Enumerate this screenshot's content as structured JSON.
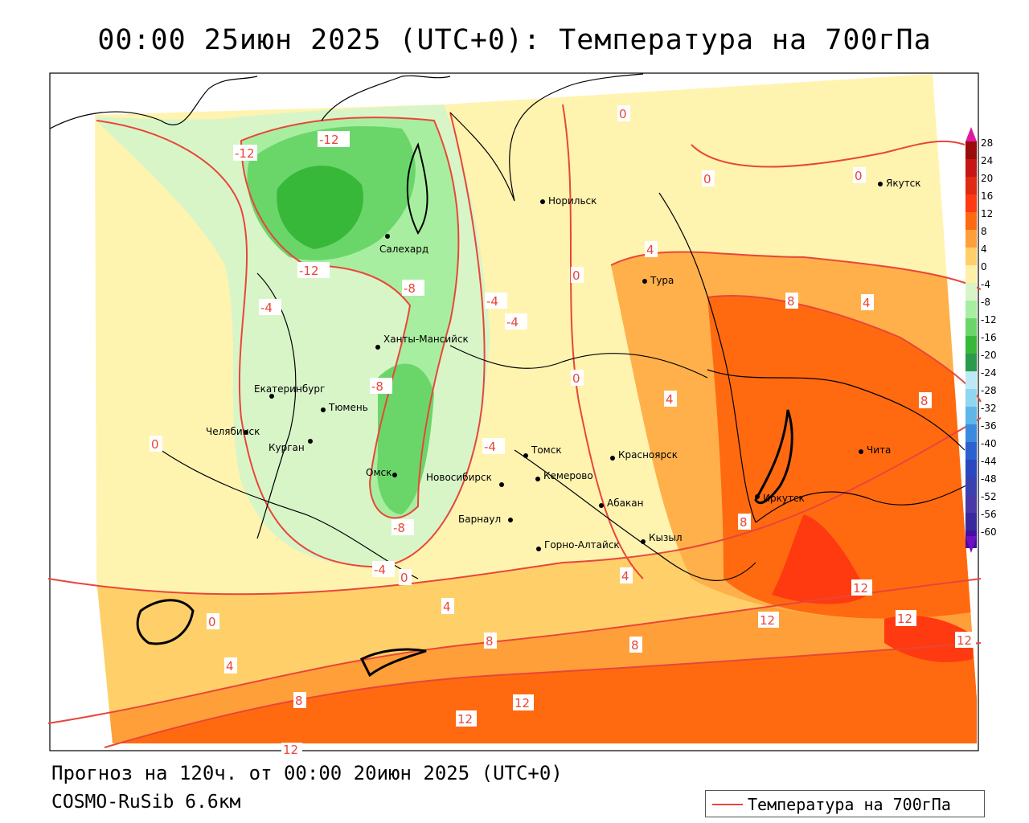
{
  "header": {
    "title": "00:00 25июн 2025 (UTC+0): Температура на 700гПа",
    "forecast": "Прогноз на 120ч. от 00:00 20июн 2025 (UTC+0)",
    "model": "COSMO-RuSib 6.6км"
  },
  "legend": {
    "entry": "Температура на 700гПа",
    "line_color": "#e8463a"
  },
  "colorbar": {
    "labels": [
      "28",
      "24",
      "20",
      "16",
      "12",
      "8",
      "4",
      "0",
      "-4",
      "-8",
      "-12",
      "-16",
      "-20",
      "-24",
      "-28",
      "-32",
      "-36",
      "-40",
      "-44",
      "-48",
      "-52",
      "-56",
      "-60"
    ],
    "colors": [
      "#9b0b0b",
      "#c61515",
      "#e02a12",
      "#ff3a10",
      "#ff6a10",
      "#ff9f3a",
      "#ffd06a",
      "#fff0a8",
      "#d8f5c8",
      "#a8eea0",
      "#6ad66a",
      "#38b838",
      "#2b9a4a",
      "#bde8f5",
      "#8fd6f0",
      "#5fb6e8",
      "#3a8ae0",
      "#2a60d0",
      "#2a48c0",
      "#3a40b0",
      "#4a38a8",
      "#3828a0",
      "#4010a0"
    ],
    "top_arrow_color": "#e01aa0",
    "bottom_arrow_color": "#7010c0"
  },
  "cities": [
    {
      "name": "Якутск"
    },
    {
      "name": "Норильск"
    },
    {
      "name": "Салехард"
    },
    {
      "name": "Тура"
    },
    {
      "name": "Ханты-Мансийск"
    },
    {
      "name": "Екатеринбург"
    },
    {
      "name": "Тюмень"
    },
    {
      "name": "Челябинск"
    },
    {
      "name": "Курган"
    },
    {
      "name": "Омск"
    },
    {
      "name": "Новосибирск"
    },
    {
      "name": "Томск"
    },
    {
      "name": "Красноярск"
    },
    {
      "name": "Кемерово"
    },
    {
      "name": "Абакан"
    },
    {
      "name": "Барнаул"
    },
    {
      "name": "Горно-Алтайск"
    },
    {
      "name": "Кызыл"
    },
    {
      "name": "Иркутск"
    },
    {
      "name": "Чита"
    }
  ],
  "isotherm_labels": [
    "-12",
    "-12",
    "-12",
    "-8",
    "-8",
    "-8",
    "-4",
    "-4",
    "-4",
    "-4",
    "-4",
    "0",
    "0",
    "0",
    "0",
    "0",
    "0",
    "0",
    "0",
    "4",
    "4",
    "4",
    "4",
    "4",
    "4",
    "8",
    "8",
    "8",
    "8",
    "8",
    "8",
    "12",
    "12",
    "12",
    "12",
    "12",
    "12",
    "12"
  ],
  "colors": {
    "outside": "#ffffff",
    "water_border": "#000000",
    "admin_border": "#000000",
    "isotherm": "#e8463a"
  }
}
